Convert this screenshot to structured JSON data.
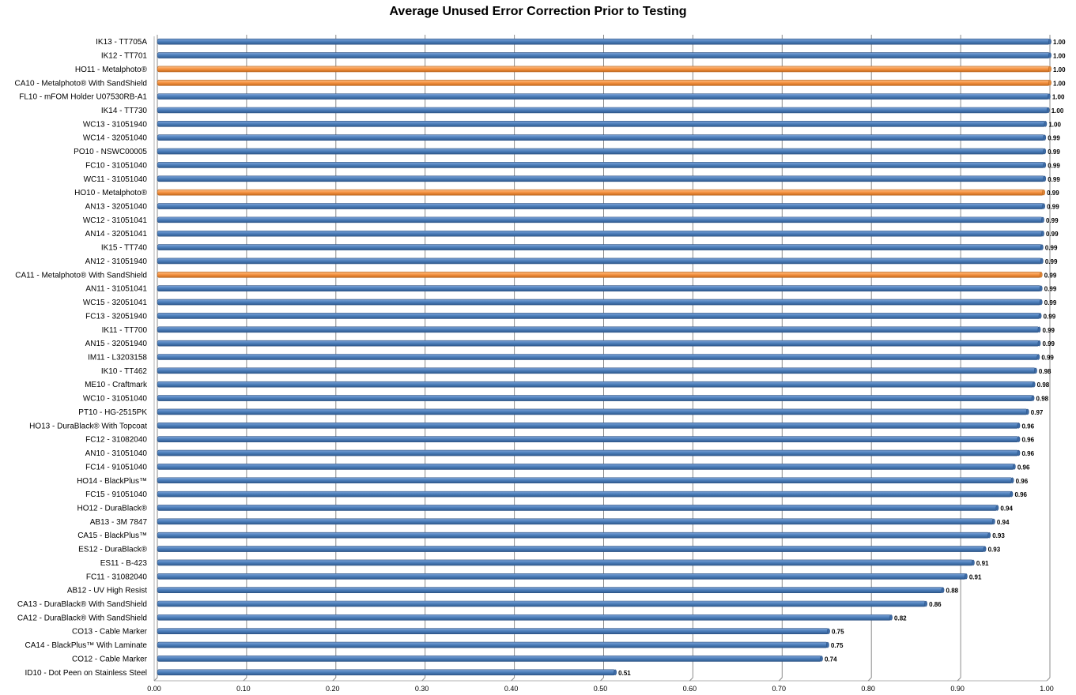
{
  "chart_data": {
    "type": "bar",
    "orientation": "horizontal",
    "title": "Average Unused Error Correction Prior to Testing",
    "xlabel": "",
    "ylabel": "",
    "xlim": [
      0,
      1
    ],
    "x_ticks": [
      "0.00",
      "0.10",
      "0.20",
      "0.30",
      "0.40",
      "0.50",
      "0.60",
      "0.70",
      "0.80",
      "0.90",
      "1.00"
    ],
    "grid": "vertical",
    "legend": "none",
    "colors": {
      "default": "#4F81BD",
      "highlight": "#F79646"
    },
    "categories": [
      "IK13 - TT705A",
      "IK12 - TT701",
      "HO11 - Metalphoto®",
      "CA10 - Metalphoto® With SandShield",
      "FL10 - mFOM Holder U07530RB-A1",
      "IK14 - TT730",
      "WC13 - 31051940",
      "WC14 - 32051040",
      "PO10 - NSWC00005",
      "FC10 - 31051040",
      "WC11 - 31051040",
      "HO10 - Metalphoto®",
      "AN13 - 32051040",
      "WC12 - 31051041",
      "AN14 - 32051041",
      "IK15 - TT740",
      "AN12 - 31051940",
      "CA11 - Metalphoto® With SandShield",
      "AN11 - 31051041",
      "WC15 - 32051041",
      "FC13 - 32051940",
      "IK11 - TT700",
      "AN15 - 32051940",
      "IM11 - L3203158",
      "IK10 - TT462",
      "ME10 - Craftmark",
      "WC10 - 31051040",
      "PT10 - HG-2515PK",
      "HO13 - DuraBlack® With Topcoat",
      "FC12 - 31082040",
      "AN10 - 31051040",
      "FC14 - 91051040",
      "HO14 - BlackPlus™",
      "FC15 - 91051040",
      "HO12 - DuraBlack®",
      "AB13 - 3M 7847",
      "CA15 - BlackPlus™",
      "ES12 - DuraBlack®",
      "ES11 - B-423",
      "FC11 - 31082040",
      "AB12 - UV High Resist",
      "CA13 - DuraBlack® With SandShield",
      "CA12 - DuraBlack® With SandShield",
      "CO13 - Cable Marker",
      "CA14 - BlackPlus™ With Laminate",
      "CO12 - Cable Marker",
      "ID10 - Dot Peen on Stainless Steel"
    ],
    "values": [
      1.0,
      1.0,
      1.0,
      1.0,
      0.999,
      0.998,
      0.995,
      0.994,
      0.994,
      0.994,
      0.994,
      0.993,
      0.993,
      0.992,
      0.992,
      0.991,
      0.991,
      0.99,
      0.99,
      0.99,
      0.989,
      0.988,
      0.988,
      0.987,
      0.984,
      0.982,
      0.981,
      0.975,
      0.965,
      0.965,
      0.965,
      0.96,
      0.958,
      0.957,
      0.941,
      0.937,
      0.932,
      0.927,
      0.914,
      0.906,
      0.88,
      0.861,
      0.822,
      0.752,
      0.751,
      0.744,
      0.513
    ],
    "labels": [
      "1.00",
      "1.00",
      "1.00",
      "1.00",
      "1.00",
      "1.00",
      "1.00",
      "0.99",
      "0.99",
      "0.99",
      "0.99",
      "0.99",
      "0.99",
      "0.99",
      "0.99",
      "0.99",
      "0.99",
      "0.99",
      "0.99",
      "0.99",
      "0.99",
      "0.99",
      "0.99",
      "0.99",
      "0.98",
      "0.98",
      "0.98",
      "0.97",
      "0.96",
      "0.96",
      "0.96",
      "0.96",
      "0.96",
      "0.96",
      "0.94",
      "0.94",
      "0.93",
      "0.93",
      "0.91",
      "0.91",
      "0.88",
      "0.86",
      "0.82",
      "0.75",
      "0.75",
      "0.74",
      "0.51"
    ],
    "highlighted": [
      false,
      false,
      true,
      true,
      false,
      false,
      false,
      false,
      false,
      false,
      false,
      true,
      false,
      false,
      false,
      false,
      false,
      true,
      false,
      false,
      false,
      false,
      false,
      false,
      false,
      false,
      false,
      false,
      false,
      false,
      false,
      false,
      false,
      false,
      false,
      false,
      false,
      false,
      false,
      false,
      false,
      false,
      false,
      false,
      false,
      false,
      false
    ]
  }
}
